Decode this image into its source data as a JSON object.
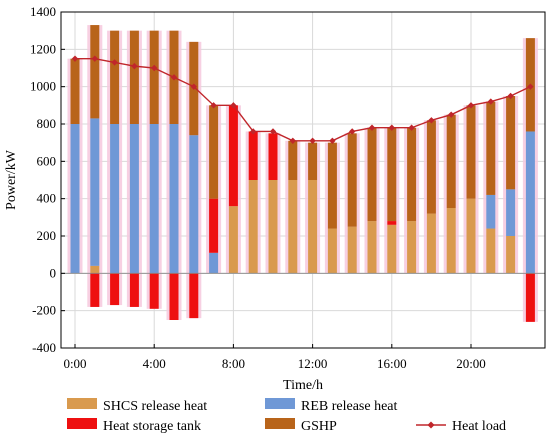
{
  "chart_data": {
    "type": "bar",
    "stacked": true,
    "xlabel": "Time/h",
    "ylabel": "Power/kW",
    "ylim": [
      -400,
      1400
    ],
    "yticks": [
      -400,
      -200,
      0,
      200,
      400,
      600,
      800,
      1000,
      1200,
      1400
    ],
    "x": [
      0,
      1,
      2,
      3,
      4,
      5,
      6,
      7,
      8,
      9,
      10,
      11,
      12,
      13,
      14,
      15,
      16,
      17,
      18,
      19,
      20,
      21,
      22,
      23
    ],
    "xticks": [
      {
        "hour": 0,
        "label": "0:00"
      },
      {
        "hour": 4,
        "label": "4:00"
      },
      {
        "hour": 8,
        "label": "8:00"
      },
      {
        "hour": 12,
        "label": "12:00"
      },
      {
        "hour": 16,
        "label": "16:00"
      },
      {
        "hour": 20,
        "label": "20:00"
      }
    ],
    "grid": true,
    "legend_position": "bottom",
    "series": [
      {
        "name": "SHCS release heat",
        "color": "#d99a4e",
        "values": [
          0,
          40,
          0,
          0,
          0,
          0,
          0,
          0,
          360,
          500,
          500,
          500,
          500,
          240,
          250,
          280,
          260,
          280,
          320,
          350,
          400,
          240,
          200,
          0
        ]
      },
      {
        "name": "REB release heat",
        "color": "#6f98d6",
        "values": [
          800,
          790,
          800,
          800,
          800,
          800,
          740,
          110,
          0,
          0,
          0,
          0,
          0,
          0,
          0,
          0,
          0,
          0,
          0,
          0,
          0,
          180,
          250,
          760
        ]
      },
      {
        "name": "Heat storage tank",
        "color": "#ee1010",
        "values": [
          0,
          -180,
          -170,
          -180,
          -190,
          -250,
          -240,
          290,
          540,
          260,
          250,
          0,
          0,
          0,
          0,
          0,
          20,
          0,
          0,
          0,
          0,
          0,
          0,
          -260
        ]
      },
      {
        "name": "GSHP",
        "color": "#b8641a",
        "values": [
          350,
          500,
          500,
          500,
          500,
          500,
          500,
          500,
          0,
          0,
          0,
          210,
          200,
          460,
          500,
          500,
          500,
          500,
          500,
          500,
          500,
          500,
          500,
          500
        ]
      }
    ],
    "line": {
      "name": "Heat load",
      "color": "#c0262b",
      "values": [
        1150,
        1150,
        1130,
        1110,
        1100,
        1050,
        1000,
        900,
        900,
        760,
        760,
        710,
        710,
        710,
        760,
        780,
        780,
        780,
        820,
        850,
        900,
        920,
        950,
        1000
      ]
    }
  },
  "legend": [
    {
      "label": "SHCS release heat",
      "color": "#d99a4e",
      "kind": "swatch"
    },
    {
      "label": "REB release heat",
      "color": "#6f98d6",
      "kind": "swatch"
    },
    {
      "label": "Heat storage tank",
      "color": "#ee1010",
      "kind": "swatch"
    },
    {
      "label": "GSHP",
      "color": "#b8641a",
      "kind": "swatch"
    },
    {
      "label": "Heat load",
      "color": "#c0262b",
      "kind": "line"
    }
  ]
}
